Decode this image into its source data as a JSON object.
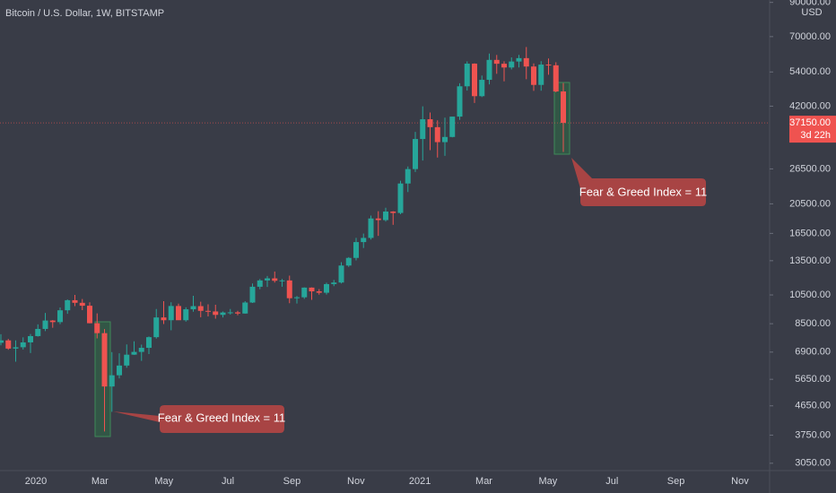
{
  "chart_data": {
    "type": "candlestick",
    "title": "Bitcoin / U.S. Dollar, 1W, BITSTAMP",
    "currency": "USD",
    "up_color": "#26a69a",
    "down_color": "#ef5350",
    "log_scale": true,
    "open": [
      7390,
      7520,
      7080,
      7150,
      7410,
      7760,
      8180,
      8700,
      8600,
      9380,
      10100,
      9910,
      9700,
      8530,
      7930,
      5360,
      5820,
      6250,
      6770,
      6910,
      7120,
      7700,
      8900,
      8720,
      9680,
      8720,
      9450,
      9670,
      9340,
      9300,
      9070,
      9230,
      9240,
      9160,
      9930,
      11150,
      11680,
      11860,
      11650,
      11680,
      10250,
      10320,
      11080,
      10780,
      10670,
      11370,
      11500,
      13030,
      13780,
      15480,
      15960,
      18410,
      18190,
      19370,
      19170,
      23800,
      26460,
      33000,
      38150,
      36000,
      32250,
      33500,
      38900,
      48600,
      57400,
      45200,
      50970,
      59000,
      57350,
      55800,
      58300,
      59770,
      56200,
      49100,
      57000,
      56700,
      46800
    ],
    "high": [
      7870,
      7600,
      7520,
      7690,
      7880,
      8460,
      9200,
      8730,
      9580,
      10160,
      10500,
      10190,
      9950,
      9170,
      8170,
      6900,
      6840,
      7300,
      7470,
      7290,
      7740,
      9470,
      10030,
      9950,
      9850,
      9590,
      10430,
      9990,
      9800,
      9770,
      9300,
      9470,
      9340,
      10030,
      11420,
      11800,
      12070,
      12470,
      11800,
      12100,
      10420,
      11100,
      11100,
      10960,
      11490,
      11720,
      13350,
      13860,
      15960,
      16480,
      18800,
      19420,
      19920,
      19420,
      24300,
      26970,
      34780,
      41950,
      40100,
      37850,
      38600,
      38900,
      49700,
      58350,
      57550,
      52600,
      61800,
      61180,
      58400,
      60100,
      61200,
      64850,
      57500,
      58450,
      59600,
      58000,
      49800
    ],
    "low": [
      7250,
      7020,
      6430,
      7030,
      6850,
      7730,
      8050,
      8250,
      8470,
      9140,
      9670,
      9390,
      8520,
      7630,
      3850,
      4450,
      5690,
      6150,
      6760,
      6470,
      6800,
      7620,
      8480,
      8100,
      8800,
      8630,
      9280,
      8910,
      8970,
      8820,
      8900,
      9090,
      9040,
      9150,
      9900,
      10950,
      11130,
      11500,
      11150,
      9880,
      9860,
      10200,
      10130,
      10520,
      10530,
      11200,
      11420,
      12900,
      13530,
      14820,
      15770,
      16200,
      18000,
      17570,
      19000,
      22350,
      25900,
      28170,
      30400,
      28800,
      29150,
      33400,
      37990,
      47100,
      43000,
      44900,
      49300,
      53270,
      50400,
      55000,
      55800,
      51200,
      47000,
      47050,
      52900,
      46500,
      30000
    ],
    "close": [
      7520,
      7080,
      7150,
      7410,
      7760,
      8180,
      8700,
      8600,
      9380,
      10100,
      9910,
      9700,
      8530,
      7930,
      5360,
      5820,
      6250,
      6770,
      6910,
      7120,
      7700,
      8900,
      8720,
      9680,
      8720,
      9450,
      9670,
      9340,
      9300,
      9070,
      9230,
      9240,
      9160,
      9930,
      11150,
      11680,
      11860,
      11650,
      11680,
      10250,
      10320,
      11080,
      10780,
      10670,
      11370,
      11500,
      13030,
      13780,
      15480,
      15960,
      18410,
      18190,
      19370,
      19170,
      23800,
      26460,
      33000,
      38150,
      36000,
      32250,
      33500,
      38900,
      48600,
      57400,
      45200,
      50970,
      59000,
      57350,
      55800,
      58300,
      59770,
      56200,
      49100,
      57000,
      56700,
      46800,
      37150
    ],
    "ylim": [
      2890,
      91600
    ],
    "yticks": [
      {
        "value": 3050,
        "label": "3050.00"
      },
      {
        "value": 3750,
        "label": "3750.00"
      },
      {
        "value": 4650,
        "label": "4650.00"
      },
      {
        "value": 5650,
        "label": "5650.00"
      },
      {
        "value": 6900,
        "label": "6900.00"
      },
      {
        "value": 8500,
        "label": "8500.00"
      },
      {
        "value": 10500,
        "label": "10500.00"
      },
      {
        "value": 13500,
        "label": "13500.00"
      },
      {
        "value": 16500,
        "label": "16500.00"
      },
      {
        "value": 20500,
        "label": "20500.00"
      },
      {
        "value": 26500,
        "label": "26500.00"
      },
      {
        "value": 42000,
        "label": "42000.00"
      },
      {
        "value": 54000,
        "label": "54000.00"
      },
      {
        "value": 70000,
        "label": "70000.00"
      },
      {
        "value": 90000,
        "label": "90000.00"
      }
    ],
    "xticks": [
      "2020",
      "Mar",
      "May",
      "Jul",
      "Sep",
      "Nov",
      "2021",
      "Mar",
      "May",
      "Jul",
      "Sep",
      "Nov"
    ],
    "last_price": {
      "value": 37150,
      "label": "37150.00"
    },
    "countdown": "3d 22h",
    "annotations": [
      "Fear & Greed Index = 11",
      "Fear & Greed Index = 11"
    ]
  }
}
